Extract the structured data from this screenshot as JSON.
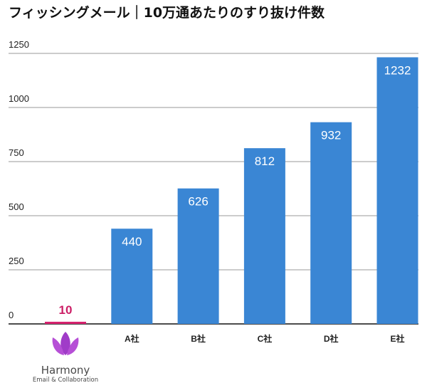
{
  "chart_data": {
    "type": "bar",
    "title": "フィッシングメール｜10万通あたりのすり抜け件数",
    "xlabel": "",
    "ylabel": "",
    "ylim": [
      0,
      1250
    ],
    "yticks": [
      "0",
      "250",
      "500",
      "750",
      "1000",
      "1250"
    ],
    "grid": true,
    "categories": [
      "Harmony",
      "A社",
      "B社",
      "C社",
      "D社",
      "E社"
    ],
    "values": [
      10,
      440,
      626,
      812,
      932,
      1232
    ],
    "value_labels": [
      "10",
      "440",
      "626",
      "812",
      "932",
      "1232"
    ],
    "colors": {
      "bar": "#3a86d4",
      "highlight_bar": "#d6226f",
      "highlight_label": "#cc1f66",
      "grid": "#9a9a9a"
    }
  },
  "logo": {
    "icon": "lotus-icon",
    "name": "Harmony",
    "tagline": "Email & Collaboration",
    "color": "#a03cc8"
  }
}
